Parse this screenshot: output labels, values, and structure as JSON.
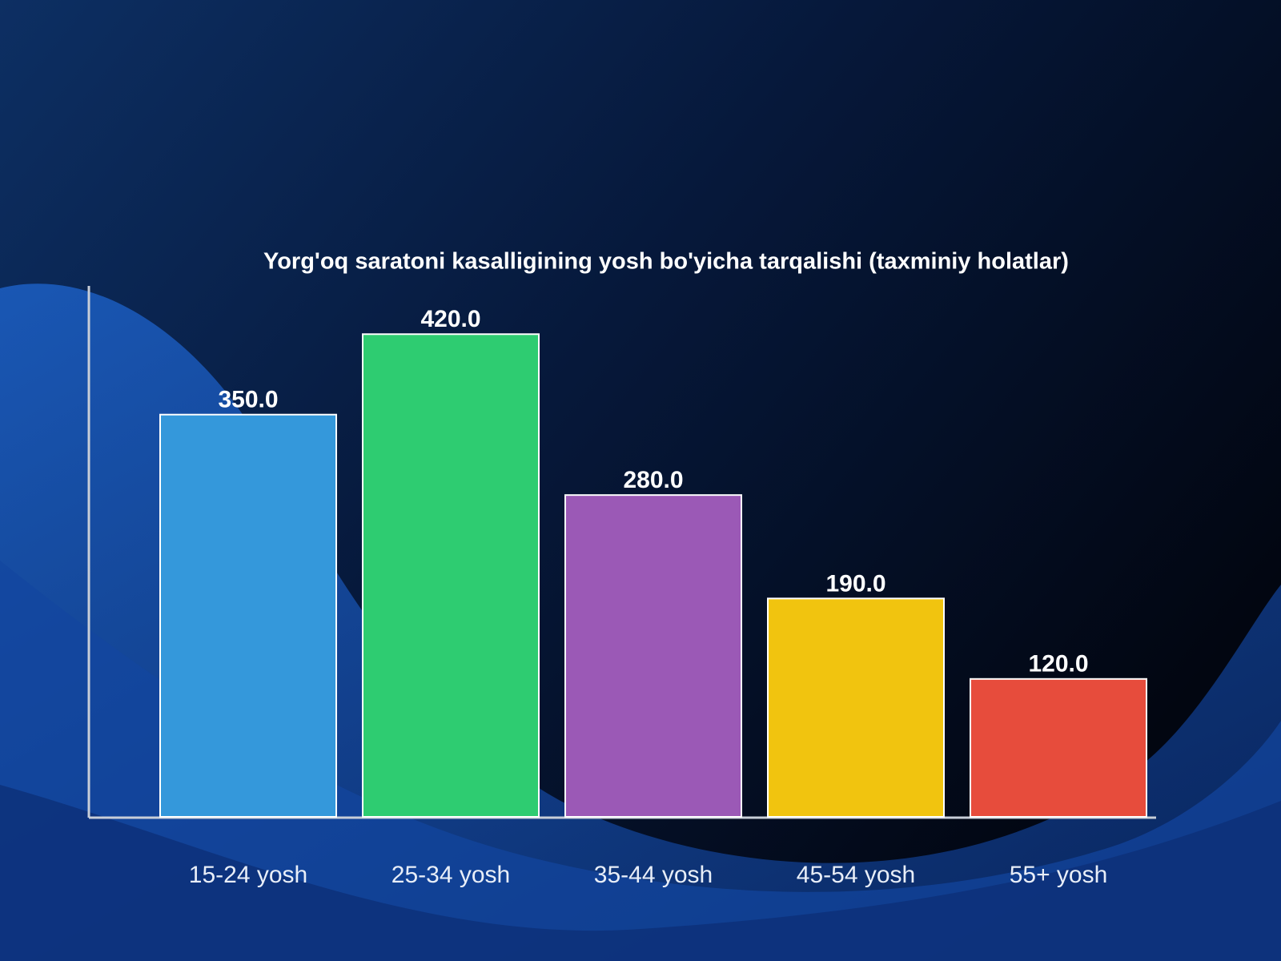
{
  "chart_data": {
    "type": "bar",
    "title": "Yorg'oq saratoni kasalligining yosh bo'yicha tarqalishi (taxminiy holatlar)",
    "categories": [
      "15-24 yosh",
      "25-34 yosh",
      "35-44 yosh",
      "45-54 yosh",
      "55+ yosh"
    ],
    "values": [
      350,
      420,
      280,
      190,
      120
    ],
    "value_labels": [
      "350.0",
      "420.0",
      "280.0",
      "190.0",
      "120.0"
    ],
    "colors": [
      "#3498db",
      "#2ecc71",
      "#9b59b6",
      "#f1c40f",
      "#e74c3c"
    ],
    "ylim": [
      0,
      462
    ],
    "grid": false
  }
}
